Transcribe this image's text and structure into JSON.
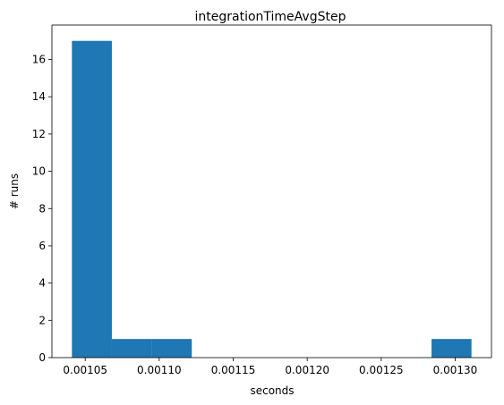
{
  "chart_data": {
    "type": "bar",
    "title": "integrationTimeAvgStep",
    "xlabel": "seconds",
    "ylabel": "# runs",
    "bins": [
      {
        "x0": 0.001041,
        "x1": 0.001068,
        "count": 17
      },
      {
        "x0": 0.001068,
        "x1": 0.001095,
        "count": 1
      },
      {
        "x0": 0.001095,
        "x1": 0.001122,
        "count": 1
      },
      {
        "x0": 0.001122,
        "x1": 0.001149,
        "count": 0
      },
      {
        "x0": 0.001149,
        "x1": 0.001176,
        "count": 0
      },
      {
        "x0": 0.001176,
        "x1": 0.001203,
        "count": 0
      },
      {
        "x0": 0.001203,
        "x1": 0.00123,
        "count": 0
      },
      {
        "x0": 0.00123,
        "x1": 0.001257,
        "count": 0
      },
      {
        "x0": 0.001257,
        "x1": 0.001284,
        "count": 0
      },
      {
        "x0": 0.001284,
        "x1": 0.001311,
        "count": 1
      }
    ],
    "xticks": [
      {
        "value": 0.00105,
        "label": "0.00105"
      },
      {
        "value": 0.0011,
        "label": "0.00110"
      },
      {
        "value": 0.00115,
        "label": "0.00115"
      },
      {
        "value": 0.0012,
        "label": "0.00120"
      },
      {
        "value": 0.00125,
        "label": "0.00125"
      },
      {
        "value": 0.0013,
        "label": "0.00130"
      }
    ],
    "yticks": [
      {
        "value": 0,
        "label": "0"
      },
      {
        "value": 2,
        "label": "2"
      },
      {
        "value": 4,
        "label": "4"
      },
      {
        "value": 6,
        "label": "6"
      },
      {
        "value": 8,
        "label": "8"
      },
      {
        "value": 10,
        "label": "10"
      },
      {
        "value": 12,
        "label": "12"
      },
      {
        "value": 14,
        "label": "14"
      },
      {
        "value": 16,
        "label": "16"
      }
    ],
    "xlim": [
      0.0010275,
      0.0013245
    ],
    "ylim": [
      0,
      17.85
    ],
    "bar_color": "#1f77b4",
    "grid": false,
    "legend": "none"
  }
}
